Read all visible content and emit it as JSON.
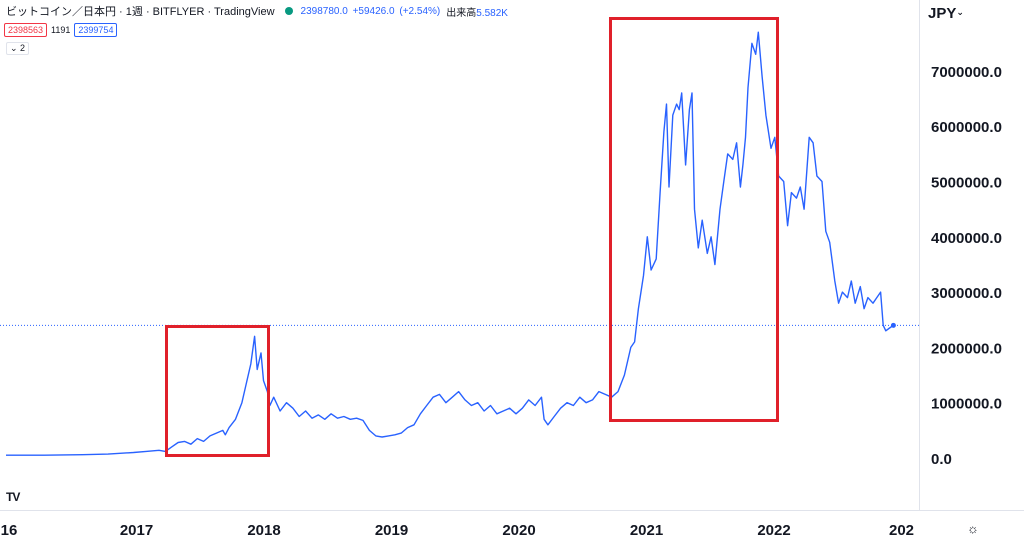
{
  "header": {
    "symbol": "ビットコイン／日本円 · 1週 · BITFLYER · TradingView",
    "price": "2398780.0",
    "change": "+59426.0",
    "change_pct": "(+2.54%)",
    "volume_label": "出来高",
    "volume": "5.582K"
  },
  "badges": {
    "bid": "2398563",
    "spread": "1191",
    "ask": "2399754"
  },
  "collapse_label": "⌄ 2",
  "currency": "JPY",
  "colors": {
    "line": "#2962ff",
    "highlight": "#e0202a",
    "axis": "#131722",
    "dotted": "#2962ff"
  },
  "chart_data": {
    "type": "line",
    "x_tick_labels": [
      "16",
      "2017",
      "2018",
      "2019",
      "2020",
      "2021",
      "2022",
      "202"
    ],
    "y_tick_labels": [
      "0.0",
      "1000000.0",
      "2000000.0",
      "3000000.0",
      "4000000.0",
      "5000000.0",
      "6000000.0",
      "7000000.0"
    ],
    "y_ticks": [
      0,
      1000000,
      2000000,
      3000000,
      4000000,
      5000000,
      6000000,
      7000000
    ],
    "x_range": [
      2016.0,
      2023.0
    ],
    "ylim": [
      -700000,
      8150000
    ],
    "current_price": 2398780,
    "series": [
      {
        "x": [
          2016.0,
          2016.3,
          2016.6,
          2016.8,
          2017.0,
          2017.1,
          2017.2,
          2017.25,
          2017.3,
          2017.35,
          2017.4,
          2017.45,
          2017.5,
          2017.55,
          2017.6,
          2017.65,
          2017.7,
          2017.72,
          2017.75,
          2017.8,
          2017.85,
          2017.88,
          2017.92,
          2017.95,
          2017.97,
          2018.0,
          2018.02,
          2018.05,
          2018.07,
          2018.1,
          2018.15,
          2018.2,
          2018.25,
          2018.3,
          2018.35,
          2018.4,
          2018.45,
          2018.5,
          2018.55,
          2018.6,
          2018.65,
          2018.7,
          2018.75,
          2018.8,
          2018.85,
          2018.9,
          2018.95,
          2019.0,
          2019.05,
          2019.1,
          2019.15,
          2019.2,
          2019.25,
          2019.3,
          2019.35,
          2019.4,
          2019.45,
          2019.5,
          2019.55,
          2019.6,
          2019.65,
          2019.7,
          2019.75,
          2019.8,
          2019.85,
          2019.9,
          2019.95,
          2020.0,
          2020.05,
          2020.1,
          2020.15,
          2020.2,
          2020.22,
          2020.25,
          2020.3,
          2020.35,
          2020.4,
          2020.45,
          2020.5,
          2020.55,
          2020.6,
          2020.65,
          2020.7,
          2020.75,
          2020.8,
          2020.85,
          2020.9,
          2020.93,
          2020.96,
          2021.0,
          2021.03,
          2021.06,
          2021.1,
          2021.13,
          2021.16,
          2021.18,
          2021.2,
          2021.23,
          2021.26,
          2021.28,
          2021.3,
          2021.33,
          2021.36,
          2021.38,
          2021.4,
          2021.43,
          2021.46,
          2021.5,
          2021.53,
          2021.56,
          2021.6,
          2021.63,
          2021.66,
          2021.7,
          2021.73,
          2021.76,
          2021.78,
          2021.8,
          2021.82,
          2021.85,
          2021.88,
          2021.9,
          2021.93,
          2021.96,
          2022.0,
          2022.03,
          2022.06,
          2022.1,
          2022.13,
          2022.16,
          2022.2,
          2022.23,
          2022.26,
          2022.3,
          2022.33,
          2022.36,
          2022.4,
          2022.43,
          2022.46,
          2022.5,
          2022.53,
          2022.56,
          2022.6,
          2022.63,
          2022.66,
          2022.7,
          2022.73,
          2022.76,
          2022.8,
          2022.83,
          2022.86,
          2022.88,
          2022.9,
          2022.93,
          2022.96
        ],
        "y": [
          50000,
          50000,
          60000,
          70000,
          100000,
          120000,
          140000,
          120000,
          200000,
          280000,
          300000,
          250000,
          350000,
          300000,
          400000,
          450000,
          500000,
          420000,
          550000,
          700000,
          1000000,
          1300000,
          1700000,
          2200000,
          1600000,
          1900000,
          1400000,
          1200000,
          950000,
          1100000,
          850000,
          1000000,
          900000,
          750000,
          850000,
          720000,
          780000,
          700000,
          800000,
          720000,
          750000,
          700000,
          720000,
          680000,
          500000,
          400000,
          380000,
          400000,
          420000,
          450000,
          550000,
          600000,
          800000,
          950000,
          1100000,
          1150000,
          1000000,
          1100000,
          1200000,
          1050000,
          950000,
          1000000,
          850000,
          950000,
          800000,
          850000,
          900000,
          800000,
          900000,
          1050000,
          950000,
          1100000,
          700000,
          600000,
          750000,
          900000,
          1000000,
          950000,
          1100000,
          1000000,
          1050000,
          1200000,
          1150000,
          1100000,
          1200000,
          1500000,
          2000000,
          2100000,
          2700000,
          3300000,
          4000000,
          3400000,
          3600000,
          4800000,
          5900000,
          6400000,
          4900000,
          6200000,
          6400000,
          6300000,
          6600000,
          5300000,
          6300000,
          6600000,
          4500000,
          3800000,
          4300000,
          3700000,
          4000000,
          3500000,
          4500000,
          5000000,
          5500000,
          5400000,
          5700000,
          4900000,
          5300000,
          5800000,
          6700000,
          7500000,
          7300000,
          7700000,
          6900000,
          6200000,
          5600000,
          5800000,
          5100000,
          5000000,
          4200000,
          4800000,
          4700000,
          4900000,
          4500000,
          5800000,
          5700000,
          5100000,
          5000000,
          4100000,
          3900000,
          3200000,
          2800000,
          3000000,
          2900000,
          3200000,
          2800000,
          3100000,
          2700000,
          2900000,
          2800000,
          2900000,
          3000000,
          2400000,
          2300000,
          2350000,
          2398780
        ]
      }
    ]
  }
}
